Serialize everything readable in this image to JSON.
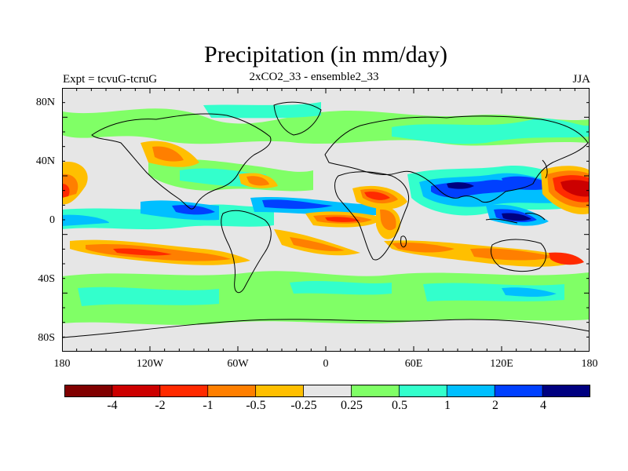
{
  "title": "Precipitation (in mm/day)",
  "subtitle": "2xCO2_33 - ensemble2_33",
  "left_label": "Expt = tcvuG-tcruG",
  "right_label": "JJA",
  "lat_labels": [
    "80N",
    "40N",
    "0",
    "40S",
    "80S"
  ],
  "lon_labels": [
    "180",
    "120W",
    "60W",
    "0",
    "60E",
    "120E",
    "180"
  ],
  "colorbar": {
    "colors": [
      "#800000",
      "#cc0000",
      "#ff2a00",
      "#ff7f00",
      "#ffbf00",
      "#e6e6e6",
      "#80ff66",
      "#33ffcc",
      "#00bfff",
      "#0040ff",
      "#000080"
    ],
    "labels": [
      "-4",
      "-2",
      "-1",
      "-0.5",
      "-0.25",
      "0.25",
      "0.5",
      "1",
      "2",
      "4"
    ]
  },
  "colors": {
    "ocean": "#e6e6e6",
    "coast": "#000000"
  }
}
